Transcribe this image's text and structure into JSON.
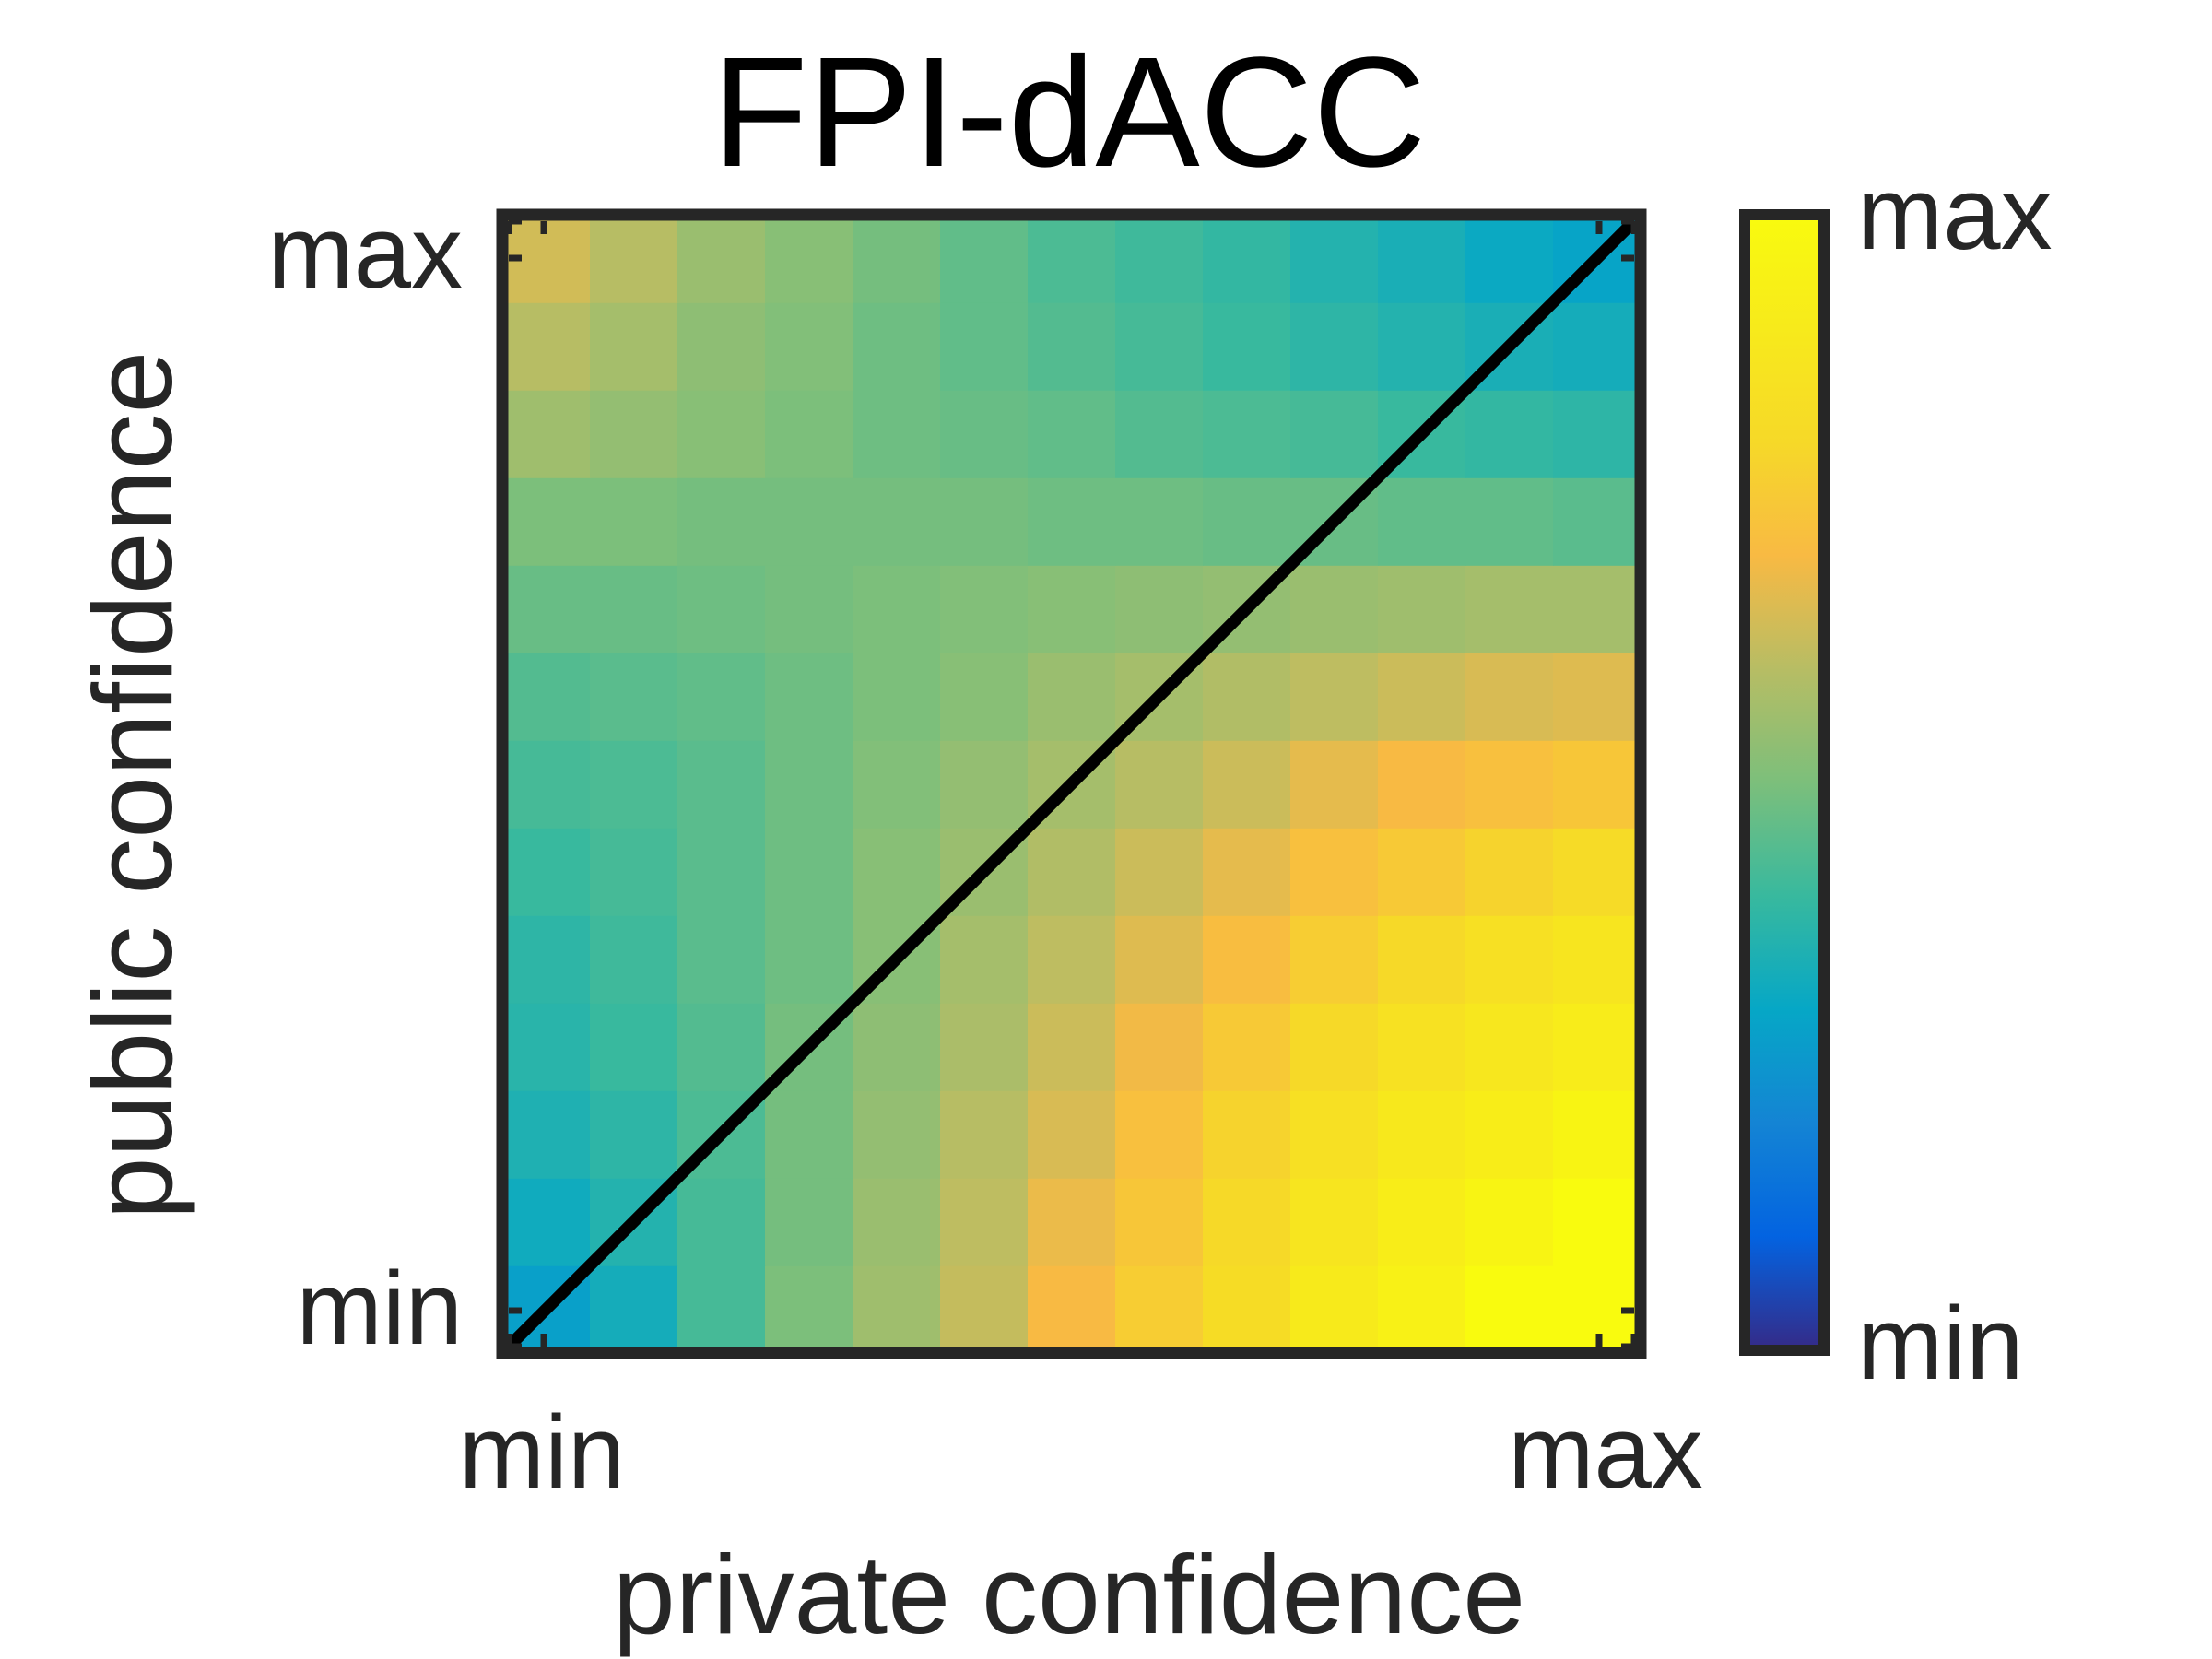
{
  "chart_data": {
    "type": "heatmap",
    "title": "FPI-dACC",
    "xlabel": "private confidence",
    "ylabel": "public confidence",
    "x_tick_labels": [
      "min",
      "max"
    ],
    "y_tick_labels": [
      "min",
      "max"
    ],
    "colorbar": {
      "colormap": "parula",
      "tick_labels": [
        "min",
        "max"
      ]
    },
    "grid": false,
    "diagonal_line": true,
    "n_rows": 13,
    "n_cols": 13,
    "value_range": [
      0,
      1
    ],
    "values_rows_from_bottom": [
      [
        0.28,
        0.33,
        0.42,
        0.5,
        0.56,
        0.62,
        0.7,
        0.76,
        0.82,
        0.9,
        0.94,
        1.0,
        1.0
      ],
      [
        0.32,
        0.36,
        0.42,
        0.49,
        0.55,
        0.61,
        0.68,
        0.74,
        0.8,
        0.87,
        0.92,
        0.96,
        1.0
      ],
      [
        0.35,
        0.38,
        0.43,
        0.49,
        0.54,
        0.6,
        0.65,
        0.72,
        0.78,
        0.84,
        0.89,
        0.92,
        0.96
      ],
      [
        0.37,
        0.4,
        0.44,
        0.49,
        0.53,
        0.58,
        0.63,
        0.69,
        0.75,
        0.8,
        0.85,
        0.88,
        0.91
      ],
      [
        0.38,
        0.41,
        0.45,
        0.48,
        0.52,
        0.57,
        0.61,
        0.66,
        0.71,
        0.76,
        0.8,
        0.84,
        0.87
      ],
      [
        0.4,
        0.42,
        0.45,
        0.48,
        0.52,
        0.55,
        0.59,
        0.63,
        0.67,
        0.72,
        0.75,
        0.78,
        0.81
      ],
      [
        0.42,
        0.43,
        0.45,
        0.48,
        0.51,
        0.54,
        0.57,
        0.6,
        0.63,
        0.67,
        0.7,
        0.72,
        0.74
      ],
      [
        0.44,
        0.45,
        0.46,
        0.48,
        0.5,
        0.52,
        0.55,
        0.57,
        0.59,
        0.61,
        0.63,
        0.65,
        0.66
      ],
      [
        0.47,
        0.47,
        0.48,
        0.49,
        0.5,
        0.51,
        0.52,
        0.53,
        0.54,
        0.55,
        0.56,
        0.57,
        0.57
      ],
      [
        0.5,
        0.5,
        0.49,
        0.49,
        0.49,
        0.49,
        0.48,
        0.48,
        0.47,
        0.47,
        0.46,
        0.46,
        0.45
      ],
      [
        0.56,
        0.54,
        0.52,
        0.5,
        0.48,
        0.47,
        0.46,
        0.44,
        0.43,
        0.42,
        0.4,
        0.39,
        0.38
      ],
      [
        0.6,
        0.57,
        0.53,
        0.51,
        0.48,
        0.46,
        0.44,
        0.42,
        0.4,
        0.38,
        0.36,
        0.34,
        0.33
      ],
      [
        0.64,
        0.6,
        0.55,
        0.52,
        0.49,
        0.46,
        0.43,
        0.41,
        0.39,
        0.36,
        0.34,
        0.31,
        0.29
      ]
    ]
  },
  "colors": {
    "frame": "#262626",
    "text": "#262626",
    "title": "#000000",
    "diagonal": "#000000"
  }
}
